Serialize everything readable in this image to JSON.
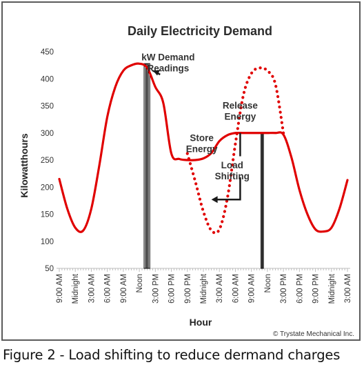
{
  "chart_data": {
    "type": "line",
    "title": "Daily Electricity Demand",
    "xlabel": "Hour",
    "ylabel": "Kilowatthours",
    "ylim": [
      50,
      450
    ],
    "yticks": [
      50,
      100,
      150,
      200,
      250,
      300,
      350,
      400,
      450
    ],
    "x_ticks": [
      "9:00 AM",
      "Midnight",
      "3:00 AM",
      "6:00 AM",
      "9:00 AM",
      "Noon",
      "3:00 PM",
      "6:00 PM",
      "9:00 PM",
      "Midnight",
      "3:00 AM",
      "6:00 AM",
      "9:00 AM",
      "Noon",
      "3:00 PM",
      "6:00 PM",
      "9:00 PM",
      "Midnight",
      "3:00 AM"
    ],
    "grid": false,
    "series": [
      {
        "style": "solid",
        "x": [
          0,
          0.5,
          1,
          1.5,
          2,
          2.5,
          3,
          3.5,
          4,
          4.5,
          5,
          5.5,
          6,
          6.5,
          7,
          7.5,
          8,
          8.5,
          9,
          9.5,
          10,
          10.5,
          11,
          11.5,
          12,
          12.5,
          13,
          13.5,
          14,
          14.5,
          15,
          15.5,
          16,
          16.5,
          17,
          17.5,
          18
        ],
        "y": [
          215,
          160,
          125,
          120,
          160,
          240,
          330,
          385,
          415,
          425,
          428,
          420,
          385,
          355,
          262,
          252,
          250,
          250,
          253,
          263,
          285,
          296,
          300,
          300,
          300,
          300,
          300,
          300,
          297,
          255,
          195,
          150,
          122,
          118,
          125,
          160,
          213
        ]
      },
      {
        "style": "dotted",
        "x": [
          8,
          8.5,
          9,
          9.5,
          10,
          10.5,
          11,
          11.5,
          12,
          12.5,
          13,
          13.5,
          14
        ],
        "y": [
          262,
          210,
          155,
          120,
          122,
          180,
          280,
          370,
          410,
          420,
          415,
          390,
          300
        ]
      }
    ],
    "demand_readings": [
      {
        "label": "kW Demand Readings",
        "x_range": [
          5.3,
          5.65
        ],
        "y": 428
      },
      {
        "x_range": [
          12.6,
          12.75
        ],
        "y": 300
      }
    ],
    "annotations": [
      {
        "lines": [
          "kW Demand",
          "Readings"
        ],
        "points_to": [
          5.6,
          420
        ]
      },
      {
        "lines": [
          "Release",
          "Energy"
        ],
        "x": 11.3,
        "y": 345
      },
      {
        "lines": [
          "Store",
          "Energy"
        ],
        "x": 8.9,
        "y": 285
      },
      {
        "lines": [
          "Load",
          "Shifting"
        ],
        "x": 10.8,
        "y": 235,
        "points_to": [
          9.5,
          177
        ]
      }
    ],
    "credit": "© Trystate Mechanical Inc."
  },
  "caption": "Figure 2 - Load shifting to reduce dermand charges"
}
